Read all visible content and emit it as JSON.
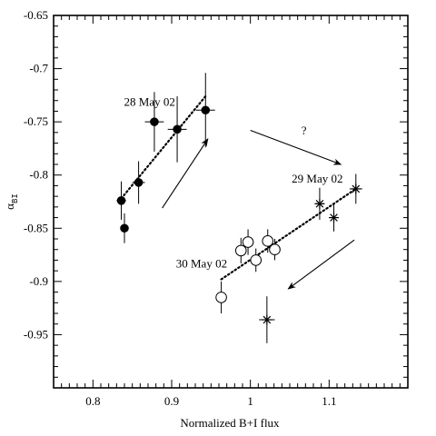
{
  "chart_data": {
    "type": "scatter",
    "title": "",
    "xlabel": "Normalized B+I flux",
    "ylabel": "α",
    "ylabel_subscript": "BI",
    "xlim": [
      0.75,
      1.2
    ],
    "ylim": [
      -1.0,
      -0.65
    ],
    "xticks": [
      "0.8",
      "0.9",
      "1",
      "1.1"
    ],
    "xtick_values": [
      0.8,
      0.9,
      1.0,
      1.1
    ],
    "yticks": [
      "-0.65",
      "-0.7",
      "-0.75",
      "-0.8",
      "-0.85",
      "-0.9",
      "-0.95"
    ],
    "ytick_values": [
      -0.65,
      -0.7,
      -0.75,
      -0.8,
      -0.85,
      -0.9,
      -0.95
    ],
    "grid": false,
    "series": [
      {
        "name": "28 May 02",
        "marker": "filled-circle",
        "points": [
          {
            "x": 0.836,
            "y": -0.824,
            "xerr": 0.006,
            "yerr": 0.018
          },
          {
            "x": 0.84,
            "y": -0.85,
            "xerr": 0.005,
            "yerr": 0.014
          },
          {
            "x": 0.858,
            "y": -0.807,
            "xerr": 0.008,
            "yerr": 0.02
          },
          {
            "x": 0.878,
            "y": -0.75,
            "xerr": 0.012,
            "yerr": 0.028
          },
          {
            "x": 0.907,
            "y": -0.757,
            "xerr": 0.012,
            "yerr": 0.031
          },
          {
            "x": 0.943,
            "y": -0.739,
            "xerr": 0.012,
            "yerr": 0.035
          }
        ],
        "trend": {
          "x": [
            0.836,
            0.943
          ],
          "y": [
            -0.822,
            -0.726
          ]
        }
      },
      {
        "name": "30 May 02",
        "marker": "open-circle",
        "points": [
          {
            "x": 0.963,
            "y": -0.915,
            "xerr": 0.0,
            "yerr": 0.015
          },
          {
            "x": 0.988,
            "y": -0.871,
            "xerr": 0.004,
            "yerr": 0.012
          },
          {
            "x": 0.997,
            "y": -0.863,
            "xerr": 0.003,
            "yerr": 0.012
          },
          {
            "x": 1.007,
            "y": -0.88,
            "xerr": 0.004,
            "yerr": 0.011
          },
          {
            "x": 1.022,
            "y": -0.862,
            "xerr": 0.003,
            "yerr": 0.011
          },
          {
            "x": 1.031,
            "y": -0.87,
            "xerr": 0.003,
            "yerr": 0.01
          }
        ]
      },
      {
        "name": "29 May 02",
        "marker": "asterisk",
        "points": [
          {
            "x": 1.021,
            "y": -0.936,
            "xerr": 0.01,
            "yerr": 0.022
          },
          {
            "x": 1.088,
            "y": -0.827,
            "xerr": 0.006,
            "yerr": 0.015
          },
          {
            "x": 1.106,
            "y": -0.84,
            "xerr": 0.005,
            "yerr": 0.013
          },
          {
            "x": 1.134,
            "y": -0.813,
            "xerr": 0.008,
            "yerr": 0.014
          }
        ],
        "trend": {
          "x": [
            0.963,
            1.134
          ],
          "y": [
            -0.898,
            -0.813
          ]
        }
      }
    ],
    "annotations": [
      {
        "text": "28 May 02",
        "x": 0.872,
        "y": -0.735
      },
      {
        "text": "29 May 02",
        "x": 1.085,
        "y": -0.807
      },
      {
        "text": "30 May 02",
        "x": 0.938,
        "y": -0.887
      },
      {
        "text": "?",
        "x": 1.068,
        "y": -0.762
      }
    ],
    "arrows": [
      {
        "x1": 0.888,
        "y1": -0.831,
        "x2": 0.946,
        "y2": -0.766
      },
      {
        "x1": 1.0,
        "y1": -0.758,
        "x2": 1.115,
        "y2": -0.79
      },
      {
        "x1": 1.132,
        "y1": -0.861,
        "x2": 1.048,
        "y2": -0.907
      }
    ]
  }
}
